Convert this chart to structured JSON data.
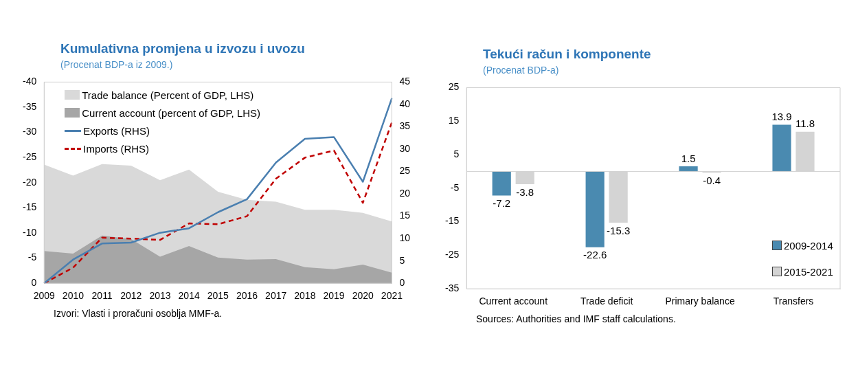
{
  "chart_data": [
    {
      "type": "area",
      "title": "Kumulativna promjena u izvozu i uvozu",
      "subtitle": "(Procenat BDP-a iz 2009.)",
      "categories": [
        "2009",
        "2010",
        "2011",
        "2012",
        "2013",
        "2014",
        "2015",
        "2016",
        "2017",
        "2018",
        "2019",
        "2020",
        "2021"
      ],
      "series": [
        {
          "name": "Trade balance (Percent of GDP, LHS)",
          "type": "area",
          "color": "#d9d9d9",
          "values": [
            -23.6,
            -21.4,
            -23.7,
            -23.4,
            -20.5,
            -22.6,
            -18.2,
            -16.6,
            -16.2,
            -14.6,
            -14.6,
            -14.0,
            -12.3
          ]
        },
        {
          "name": "Current account (percent of GDP, LHS)",
          "type": "area",
          "color": "#a6a6a6",
          "values": [
            -6.4,
            -5.9,
            -9.5,
            -8.8,
            -5.3,
            -7.4,
            -5.1,
            -4.7,
            -4.8,
            -3.2,
            -2.8,
            -3.7,
            -2.1
          ]
        },
        {
          "name": "Exports (RHS)",
          "type": "line",
          "axis": "y2",
          "color": "#4a7fb0",
          "line_style": "solid",
          "values": [
            0,
            5.3,
            8.9,
            9.1,
            11.3,
            12.3,
            15.9,
            18.8,
            27.0,
            32.3,
            32.7,
            22.7,
            41.4
          ]
        },
        {
          "name": "Imports (RHS)",
          "type": "line",
          "axis": "y2",
          "color": "#c00000",
          "line_style": "dashed",
          "values": [
            0,
            3.5,
            10.2,
            10.0,
            9.7,
            13.4,
            13.2,
            15.0,
            23.4,
            28.1,
            29.7,
            18.0,
            36.0
          ]
        }
      ],
      "ylim": [
        0,
        -40
      ],
      "yticks": [
        0,
        -5,
        -10,
        -15,
        -20,
        -25,
        -30,
        -35,
        -40
      ],
      "y2lim": [
        0,
        45
      ],
      "y2ticks": [
        0,
        5,
        10,
        15,
        20,
        25,
        30,
        35,
        40,
        45
      ],
      "grid": false,
      "legend": "top left",
      "marker": "none",
      "annotations": [
        "Izvori: Vlasti i proračuni osoblja MMF-a."
      ]
    },
    {
      "type": "bar",
      "title": "Tekući račun i komponente",
      "subtitle": "(Procenat BDP-a)",
      "categories": [
        "Current account",
        "Trade deficit",
        "Primary balance",
        "Transfers"
      ],
      "series": [
        {
          "name": "2009-2014",
          "color": "#4a8ab0",
          "values": [
            -7.2,
            -22.6,
            1.5,
            13.9
          ]
        },
        {
          "name": "2015-2021",
          "color": "#d4d4d4",
          "values": [
            -3.8,
            -15.3,
            -0.4,
            11.8
          ]
        }
      ],
      "ylim": [
        -35,
        25
      ],
      "yticks": [
        -35,
        -25,
        -15,
        -5,
        5,
        15,
        25
      ],
      "grid": false,
      "legend": "bottom right",
      "data_labels": true,
      "annotations": [
        "Sources: Authorities and IMF staff calculations."
      ]
    }
  ]
}
